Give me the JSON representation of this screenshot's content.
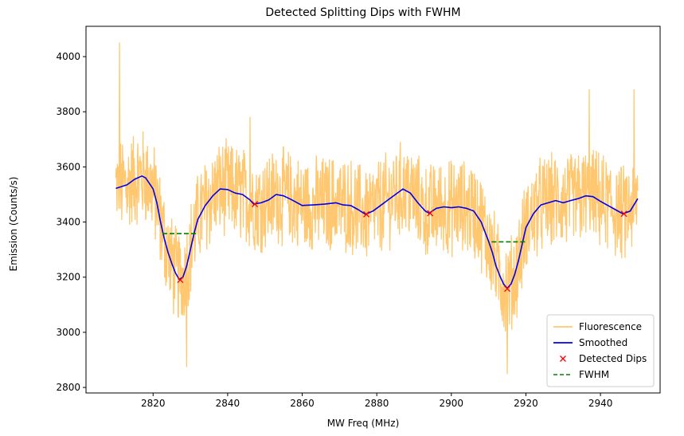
{
  "chart_data": {
    "type": "line",
    "title": "Detected Splitting Dips with FWHM",
    "xlabel": "MW Freq (MHz)",
    "ylabel": "Emission (Counts/s)",
    "xlim": [
      2802,
      2956
    ],
    "ylim": [
      2780,
      4110
    ],
    "x_ticks": [
      2820,
      2840,
      2860,
      2880,
      2900,
      2920,
      2940
    ],
    "y_ticks": [
      2800,
      3000,
      3200,
      3400,
      3600,
      3800,
      4000
    ],
    "grid": false,
    "legend_position": "lower-right",
    "colors": {
      "fluorescence": "#ffc870",
      "smoothed": "#0000ee",
      "dips": "#ff0000",
      "fwhm": "#008000"
    },
    "series": [
      {
        "name": "Fluorescence",
        "style": "noisy-line",
        "x_range": [
          2810,
          2950
        ],
        "noise_amplitude": 160,
        "peak_spikes": [
          [
            2811,
            4050
          ],
          [
            2846,
            3780
          ],
          [
            2937,
            3880
          ],
          [
            2949,
            3880
          ]
        ],
        "low_spikes": [
          [
            2829,
            2875
          ],
          [
            2915,
            2850
          ]
        ]
      },
      {
        "name": "Smoothed",
        "points": [
          [
            2810,
            3522
          ],
          [
            2813,
            3535
          ],
          [
            2815,
            3555
          ],
          [
            2817,
            3567
          ],
          [
            2818,
            3560
          ],
          [
            2820,
            3520
          ],
          [
            2821,
            3470
          ],
          [
            2822,
            3400
          ],
          [
            2823,
            3340
          ],
          [
            2824,
            3290
          ],
          [
            2825,
            3250
          ],
          [
            2826,
            3215
          ],
          [
            2827,
            3192
          ],
          [
            2828,
            3200
          ],
          [
            2829,
            3240
          ],
          [
            2830,
            3300
          ],
          [
            2831,
            3360
          ],
          [
            2832,
            3410
          ],
          [
            2834,
            3460
          ],
          [
            2836,
            3495
          ],
          [
            2838,
            3520
          ],
          [
            2840,
            3518
          ],
          [
            2842,
            3505
          ],
          [
            2844,
            3500
          ],
          [
            2846,
            3480
          ],
          [
            2847,
            3465
          ],
          [
            2849,
            3470
          ],
          [
            2851,
            3480
          ],
          [
            2853,
            3500
          ],
          [
            2855,
            3495
          ],
          [
            2857,
            3482
          ],
          [
            2860,
            3460
          ],
          [
            2863,
            3462
          ],
          [
            2866,
            3465
          ],
          [
            2869,
            3470
          ],
          [
            2871,
            3462
          ],
          [
            2873,
            3460
          ],
          [
            2875,
            3445
          ],
          [
            2877,
            3428
          ],
          [
            2879,
            3440
          ],
          [
            2881,
            3460
          ],
          [
            2883,
            3480
          ],
          [
            2885,
            3500
          ],
          [
            2887,
            3520
          ],
          [
            2889,
            3505
          ],
          [
            2891,
            3470
          ],
          [
            2893,
            3440
          ],
          [
            2894,
            3432
          ],
          [
            2896,
            3450
          ],
          [
            2898,
            3455
          ],
          [
            2900,
            3452
          ],
          [
            2902,
            3455
          ],
          [
            2904,
            3450
          ],
          [
            2906,
            3440
          ],
          [
            2908,
            3400
          ],
          [
            2910,
            3330
          ],
          [
            2911,
            3290
          ],
          [
            2912,
            3240
          ],
          [
            2913,
            3205
          ],
          [
            2914,
            3175
          ],
          [
            2915,
            3160
          ],
          [
            2916,
            3175
          ],
          [
            2917,
            3210
          ],
          [
            2918,
            3260
          ],
          [
            2919,
            3320
          ],
          [
            2920,
            3380
          ],
          [
            2922,
            3430
          ],
          [
            2924,
            3462
          ],
          [
            2926,
            3470
          ],
          [
            2928,
            3478
          ],
          [
            2930,
            3470
          ],
          [
            2932,
            3478
          ],
          [
            2934,
            3485
          ],
          [
            2936,
            3495
          ],
          [
            2938,
            3492
          ],
          [
            2940,
            3475
          ],
          [
            2942,
            3460
          ],
          [
            2944,
            3445
          ],
          [
            2946,
            3430
          ],
          [
            2948,
            3440
          ],
          [
            2950,
            3485
          ]
        ]
      },
      {
        "name": "Detected Dips",
        "marker": "x",
        "points": [
          [
            2827.3,
            3190
          ],
          [
            2847.3,
            3465
          ],
          [
            2877.2,
            3428
          ],
          [
            2894.3,
            3432
          ],
          [
            2915.0,
            3158
          ],
          [
            2946.3,
            3430
          ]
        ]
      },
      {
        "name": "FWHM",
        "style": "dashed",
        "segments": [
          [
            [
              2822.5,
              3358
            ],
            [
              2832.0,
              3358
            ]
          ],
          [
            [
              2910.8,
              3328
            ],
            [
              2920.0,
              3328
            ]
          ]
        ]
      }
    ]
  }
}
